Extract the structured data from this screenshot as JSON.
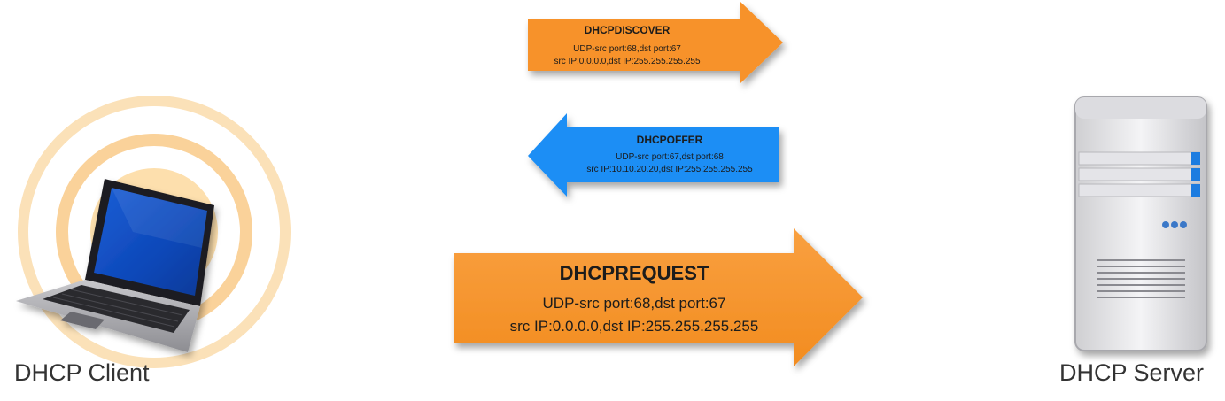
{
  "client": {
    "label": "DHCP Client"
  },
  "server": {
    "label": "DHCP Server"
  },
  "messages": [
    {
      "title": "DHCPDISCOVER",
      "line1": "UDP-src port:68,dst port:67",
      "line2": "src IP:0.0.0.0,dst IP:255.255.255.255",
      "direction": "right",
      "color": "#f7922a"
    },
    {
      "title": "DHCPOFFER",
      "line1": "UDP-src port:67,dst port:68",
      "line2": "src IP:10.10.20.20,dst IP:255.255.255.255",
      "direction": "left",
      "color": "#1b8ef5"
    },
    {
      "title": "DHCPREQUEST",
      "line1": "UDP-src port:68,dst port:67",
      "line2": "src IP:0.0.0.0,dst IP:255.255.255.255",
      "direction": "right",
      "color": "#f7922a"
    }
  ]
}
